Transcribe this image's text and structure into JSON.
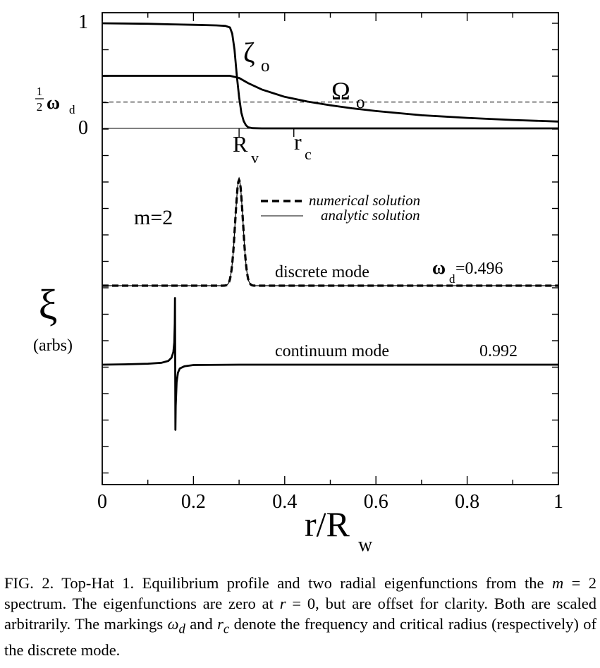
{
  "chart_data": {
    "type": "line",
    "xlabel": "r/R",
    "xlabel_sub": "w",
    "xlim": [
      0,
      1
    ],
    "x_ticks": [
      0,
      0.2,
      0.4,
      0.6,
      0.8,
      1
    ],
    "x_tick_labels": [
      "0",
      "0.2",
      "0.4",
      "0.6",
      "0.8",
      "1"
    ],
    "x_minor_step": 0.1,
    "panel_equilibrium": {
      "ylim": [
        0,
        1
      ],
      "y_tick_labels": [
        {
          "y": 1,
          "text": "1"
        },
        {
          "y": 0.5,
          "text": "1/2 ω_d",
          "frac_num": "1",
          "frac_den": "2",
          "omega": "ω",
          "sub": "d"
        },
        {
          "y": 0,
          "text": "0"
        }
      ],
      "series": [
        {
          "name": "ζ",
          "name_sub": "o",
          "x": [
            0,
            0.05,
            0.1,
            0.15,
            0.2,
            0.25,
            0.27,
            0.28,
            0.285,
            0.29,
            0.295,
            0.3,
            0.305,
            0.31,
            0.315,
            0.32,
            0.33,
            0.35,
            0.4,
            0.6,
            0.8,
            1.0
          ],
          "y": [
            1.0,
            0.998,
            0.995,
            0.99,
            0.985,
            0.98,
            0.975,
            0.96,
            0.9,
            0.75,
            0.5,
            0.3,
            0.15,
            0.07,
            0.03,
            0.01,
            0.002,
            0,
            0,
            0,
            0,
            0
          ]
        },
        {
          "name": "Ω",
          "name_sub": "o",
          "x": [
            0,
            0.1,
            0.2,
            0.25,
            0.28,
            0.29,
            0.3,
            0.32,
            0.35,
            0.4,
            0.45,
            0.5,
            0.55,
            0.6,
            0.7,
            0.8,
            0.9,
            1.0
          ],
          "y": [
            0.5,
            0.5,
            0.5,
            0.5,
            0.5,
            0.49,
            0.48,
            0.43,
            0.37,
            0.3,
            0.255,
            0.22,
            0.19,
            0.165,
            0.125,
            0.1,
            0.08,
            0.065
          ]
        }
      ],
      "dashed_level": 0.25,
      "markers": [
        {
          "x": 0.3,
          "text": "R",
          "sub": "v"
        },
        {
          "x": 0.42,
          "text": "r",
          "sub": "c"
        }
      ]
    },
    "panel_eigenfunctions": {
      "ylabel": "ξ",
      "ylabel_note": "(arbs)",
      "annotation": "m=2",
      "legend": [
        {
          "style": "dashed",
          "text": "numerical solution"
        },
        {
          "style": "solid",
          "text": "analytic solution"
        }
      ],
      "discrete_mode": {
        "label": "discrete mode",
        "freq_label": "=0.496",
        "freq_symbol": "ω",
        "freq_sub": "d",
        "baseline": 0,
        "peak_x": 0.3,
        "peak_height": 1.0,
        "peak_width": 0.012
      },
      "continuum_mode": {
        "label": "continuum mode",
        "freq_label": "0.992",
        "x": [
          0,
          0.05,
          0.1,
          0.13,
          0.145,
          0.152,
          0.156,
          0.158,
          0.159,
          0.1595,
          0.16,
          0.1605,
          0.161,
          0.163,
          0.166,
          0.17,
          0.18,
          0.2,
          0.3,
          0.5,
          1.0
        ],
        "y": [
          0.0,
          0.01,
          0.03,
          0.06,
          0.12,
          0.22,
          0.4,
          0.7,
          1.3,
          2.1,
          0.0,
          -2.05,
          -1.3,
          -0.55,
          -0.25,
          -0.12,
          -0.05,
          -0.01,
          0,
          0,
          0
        ]
      }
    }
  },
  "caption": {
    "text": "FIG. 2. Top-Hat 1. Equilibrium profile and two radial eigenfunctions from the m = 2 spectrum. The eigenfunctions are zero at r = 0, but are offset for clarity. Both are scaled arbitrarily. The markings ω_d and r_c denote the frequency and critical radius (respectively) of the discrete mode.",
    "p1": "FIG. 2. Top-Hat 1. Equilibrium profile and two radial eigenfunctions from the ",
    "m": "m",
    "p2": " = 2 spectrum. The eigenfunctions are zero at ",
    "r": "r",
    "p3": " = 0, but are offset for clarity. Both are scaled arbitrarily. The markings ",
    "omega": "ω",
    "omega_sub": "d",
    "p4": " and ",
    "rc": "r",
    "rc_sub": "c",
    "p5": " denote the frequency and critical radius (respectively) of the discrete mode."
  }
}
